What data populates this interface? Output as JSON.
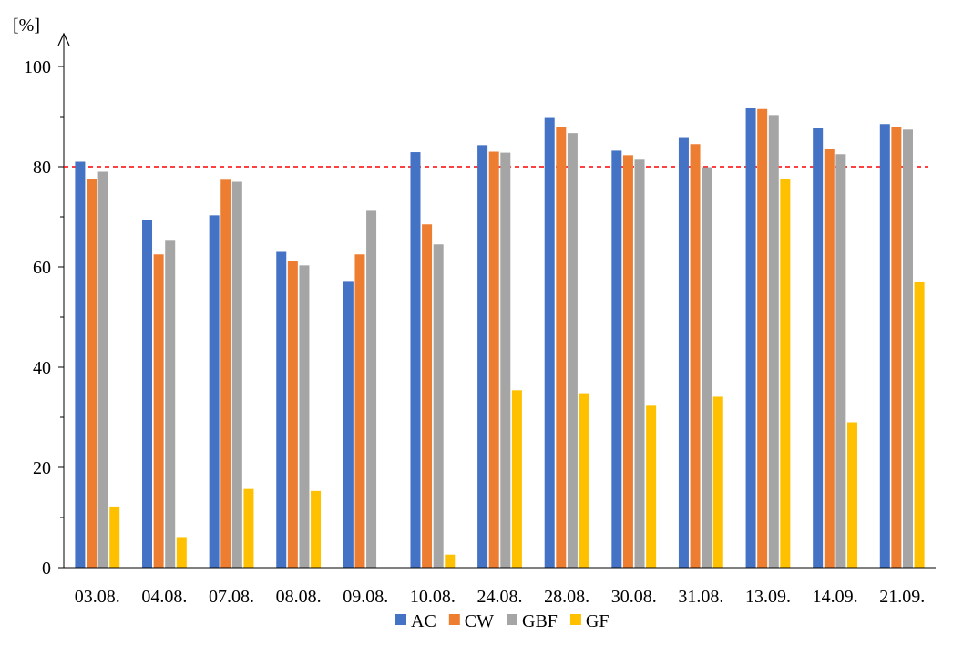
{
  "chart_data": {
    "type": "bar",
    "ylabel": "[%]",
    "ylim": [
      0,
      100
    ],
    "yticks": [
      0,
      20,
      40,
      60,
      80,
      100
    ],
    "reference_line": {
      "value": 80,
      "color": "#ff0000",
      "style": "dashed"
    },
    "categories": [
      "03.08.",
      "04.08.",
      "07.08.",
      "08.08.",
      "09.08.",
      "10.08.",
      "24.08.",
      "28.08.",
      "30.08.",
      "31.08.",
      "13.09.",
      "14.09.",
      "21.09."
    ],
    "series": [
      {
        "name": "AC",
        "color": "#4472c4",
        "values": [
          81.0,
          69.3,
          70.3,
          63.0,
          57.2,
          82.9,
          84.3,
          89.9,
          83.2,
          85.9,
          91.7,
          87.8,
          88.5
        ]
      },
      {
        "name": "CW",
        "color": "#ed7d31",
        "values": [
          77.6,
          62.5,
          77.4,
          61.2,
          62.5,
          68.5,
          83.0,
          88.0,
          82.3,
          84.5,
          91.5,
          83.5,
          88.0
        ]
      },
      {
        "name": "GBF",
        "color": "#a5a5a5",
        "values": [
          79.0,
          65.4,
          77.0,
          60.3,
          71.2,
          64.5,
          82.8,
          86.7,
          81.4,
          79.9,
          90.3,
          82.5,
          87.4
        ]
      },
      {
        "name": "GF",
        "color": "#ffc000",
        "values": [
          12.2,
          6.1,
          15.7,
          15.3,
          0,
          2.6,
          35.4,
          34.8,
          32.3,
          34.1,
          77.6,
          29.0,
          57.1
        ]
      }
    ],
    "grid": false,
    "legend_position": "bottom"
  }
}
